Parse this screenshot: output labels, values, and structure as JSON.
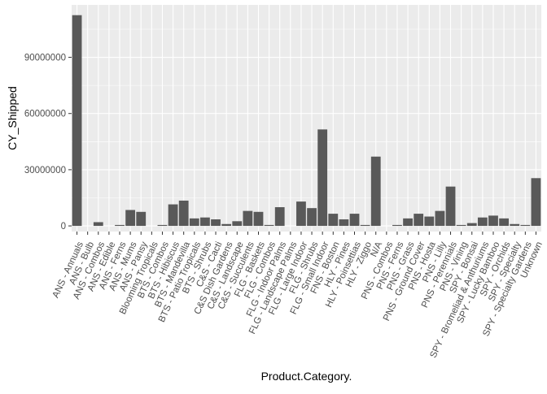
{
  "chart_data": {
    "type": "bar",
    "xlabel": "Product.Category.",
    "ylabel": "CY_Shipped",
    "ylim": [
      -3000000,
      118000000
    ],
    "yticks": [
      0,
      30000000,
      60000000,
      90000000
    ],
    "ytick_labels": [
      "0",
      "30000000",
      "60000000",
      "90000000"
    ],
    "grid": true,
    "theme": "grey-background",
    "colors": {
      "panel": "#ebebeb",
      "grid": "#ffffff",
      "bar": "#595959",
      "text": "#4d4d4d",
      "title": "#000000"
    },
    "categories": [
      "ANS - Annuals",
      "ANS - Bulb",
      "ANS - Combos",
      "ANS - Edible",
      "ANS - Ferns",
      "ANS - Mums",
      "ANS - Pansy",
      "Blooming Tropicals",
      "BTS - Combos",
      "BTS - Hibiscus",
      "BTS - Mandevilla",
      "BTS - Patio Tropicals",
      "BTS - Shrubs",
      "C&S - Cacti",
      "C&S Dish Gardens",
      "C&S - Landscape",
      "C&S - Succulents",
      "FLG - Baskets",
      "FLG - Combos",
      "FLG - Indoor Palms",
      "FLG - Landscape Palms",
      "FLG - Large Indoor",
      "FLG - Shrubs",
      "FLG - Small Indoor",
      "FNS - Boston",
      "HLY - Pines",
      "HLY - Poinsettias",
      "HLY - Ziggo",
      "N/A",
      "PNS - Combos",
      "PNS - Ferns",
      "PNS - Grass",
      "PNS - Ground Cover",
      "PNS - Hosta",
      "PNS - Lilly",
      "PNS - Perennials",
      "PNS - Vining",
      "SPY - Bonsai",
      "SPY - Bromeliad & Anthuriums",
      "SPY - Lucky Bamboo",
      "SPY - Orchids",
      "SPY - Specialty",
      "SPY - Specialty Gardens",
      "Unknown"
    ],
    "values": [
      112500000,
      0,
      2000000,
      0,
      500000,
      8500000,
      7500000,
      0,
      500000,
      11500000,
      13500000,
      4000000,
      4500000,
      3500000,
      1000000,
      2500000,
      8000000,
      7500000,
      500000,
      10000000,
      0,
      13000000,
      9500000,
      51500000,
      6500000,
      3500000,
      6500000,
      500000,
      37000000,
      0,
      500000,
      4000000,
      6500000,
      5000000,
      8000000,
      21000000,
      500000,
      1500000,
      4500000,
      5500000,
      4000000,
      1000000,
      500000,
      25500000
    ]
  }
}
